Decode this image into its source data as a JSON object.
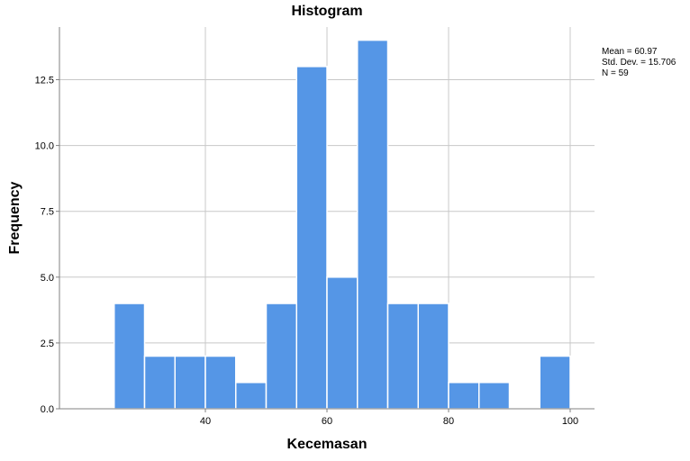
{
  "chart_data": {
    "type": "bar",
    "title": "Histogram",
    "xlabel": "Kecemasan",
    "ylabel": "Frequency",
    "bin_width": 5,
    "bins": [
      {
        "x0": 25,
        "x1": 30,
        "count": 4
      },
      {
        "x0": 30,
        "x1": 35,
        "count": 2
      },
      {
        "x0": 35,
        "x1": 40,
        "count": 2
      },
      {
        "x0": 40,
        "x1": 45,
        "count": 2
      },
      {
        "x0": 45,
        "x1": 50,
        "count": 1
      },
      {
        "x0": 50,
        "x1": 55,
        "count": 4
      },
      {
        "x0": 55,
        "x1": 60,
        "count": 13
      },
      {
        "x0": 60,
        "x1": 65,
        "count": 5
      },
      {
        "x0": 65,
        "x1": 70,
        "count": 14
      },
      {
        "x0": 70,
        "x1": 75,
        "count": 4
      },
      {
        "x0": 75,
        "x1": 80,
        "count": 4
      },
      {
        "x0": 80,
        "x1": 85,
        "count": 1
      },
      {
        "x0": 85,
        "x1": 90,
        "count": 1
      },
      {
        "x0": 95,
        "x1": 100,
        "count": 2
      }
    ],
    "xlim": [
      16,
      104
    ],
    "ylim": [
      0,
      14.5
    ],
    "xticks": [
      40,
      60,
      80,
      100
    ],
    "xtick_labels": [
      "40",
      "60",
      "80",
      "100"
    ],
    "yticks": [
      0,
      2.5,
      5,
      7.5,
      10,
      12.5
    ],
    "ytick_labels": [
      "0.0",
      "2.5",
      "5.0",
      "7.5",
      "10.0",
      "12.5"
    ],
    "grid": true,
    "bar_color": "#5596e6",
    "bar_edge_color": "#ffffff",
    "grid_color": "#c8c8c8",
    "axis_color": "#808080",
    "stats": {
      "mean": "Mean = 60.97",
      "std": "Std. Dev. = 15.706",
      "n": "N = 59"
    }
  }
}
